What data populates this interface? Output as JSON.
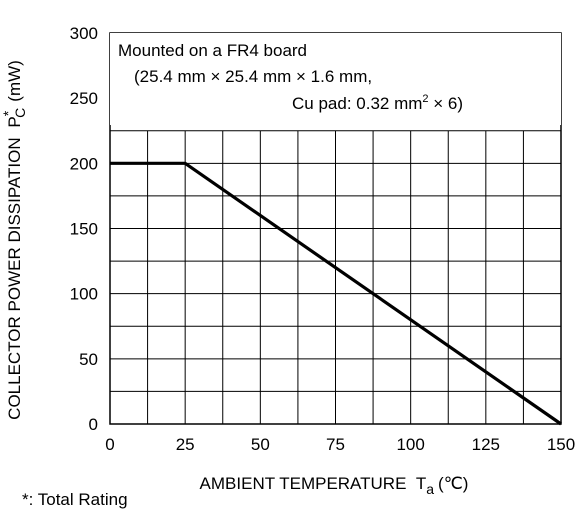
{
  "chart_data": {
    "type": "line",
    "xlabel": "AMBIENT TEMPERATURE",
    "xlabel_symbol": "T",
    "xlabel_sub": "a",
    "xlabel_unit": "(℃)",
    "ylabel": "COLLECTOR POWER DISSIPATION",
    "ylabel_symbol": "P",
    "ylabel_sub": "C",
    "ylabel_sup": "*",
    "ylabel_unit": "(mW)",
    "xlim": [
      0,
      150
    ],
    "ylim": [
      0,
      300
    ],
    "x_ticks": [
      "0",
      "25",
      "50",
      "75",
      "100",
      "125",
      "150"
    ],
    "y_ticks": [
      "0",
      "50",
      "100",
      "150",
      "200",
      "250",
      "300"
    ],
    "grid": true,
    "grid_x_step": 12.5,
    "grid_y_step": 25,
    "grid_y_max": 225,
    "series": [
      {
        "x": [
          0,
          25,
          150
        ],
        "y": [
          200,
          200,
          0
        ]
      }
    ],
    "annotation": {
      "line1": "Mounted on a FR4 board",
      "line2": "(25.4 mm × 25.4 mm × 1.6 mm,",
      "line3_pre": "Cu pad: 0.32 mm",
      "line3_sup": "2",
      "line3_post": " × 6)"
    }
  },
  "footnote": "*: Total Rating"
}
